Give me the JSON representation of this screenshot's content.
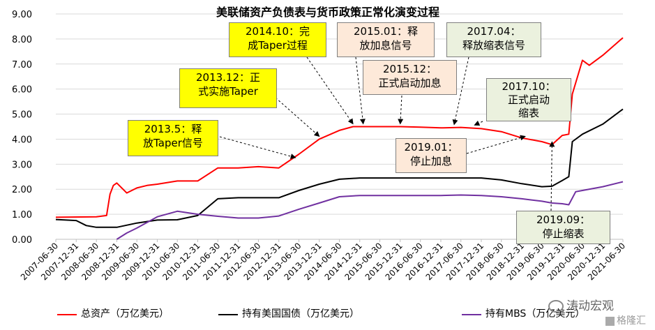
{
  "chart_data": {
    "type": "line",
    "title": "美联储资产负债表与货币政策正常化演变过程",
    "xlabel": "",
    "ylabel": "",
    "ylim": [
      0,
      9
    ],
    "yticks": [
      "0.00",
      "1.00",
      "2.00",
      "3.00",
      "4.00",
      "5.00",
      "6.00",
      "7.00",
      "8.00",
      "9.00"
    ],
    "xtick_labels": [
      "2007-06-30",
      "2007-12-31",
      "2008-06-30",
      "2008-12-31",
      "2009-06-30",
      "2009-12-31",
      "2010-06-30",
      "2010-12-31",
      "2011-06-30",
      "2011-12-31",
      "2012-06-30",
      "2012-12-31",
      "2013-06-30",
      "2013-12-31",
      "2014-06-30",
      "2014-12-31",
      "2015-06-30",
      "2015-12-31",
      "2016-06-30",
      "2016-12-31",
      "2017-06-30",
      "2017-12-31",
      "2018-06-30",
      "2018-12-31",
      "2019-06-30",
      "2019-12-31",
      "2020-06-30",
      "2020-12-31",
      "2021-06-30"
    ],
    "grid": true,
    "legend_position": "bottom",
    "series": [
      {
        "name": "总资产（万亿美元）",
        "color": "#ff0000",
        "points": [
          [
            "2007-06-30",
            0.88
          ],
          [
            "2008-06-30",
            0.9
          ],
          [
            "2008-09-30",
            0.95
          ],
          [
            "2008-10-31",
            1.8
          ],
          [
            "2008-11-30",
            2.15
          ],
          [
            "2008-12-31",
            2.25
          ],
          [
            "2009-03-31",
            1.85
          ],
          [
            "2009-06-30",
            2.05
          ],
          [
            "2009-09-30",
            2.15
          ],
          [
            "2009-12-31",
            2.2
          ],
          [
            "2010-06-30",
            2.33
          ],
          [
            "2010-12-31",
            2.33
          ],
          [
            "2011-06-30",
            2.85
          ],
          [
            "2011-12-31",
            2.85
          ],
          [
            "2012-06-30",
            2.9
          ],
          [
            "2012-12-31",
            2.85
          ],
          [
            "2013-06-30",
            3.4
          ],
          [
            "2013-12-31",
            4.0
          ],
          [
            "2014-06-30",
            4.35
          ],
          [
            "2014-10-31",
            4.5
          ],
          [
            "2014-12-31",
            4.5
          ],
          [
            "2015-06-30",
            4.5
          ],
          [
            "2015-12-31",
            4.5
          ],
          [
            "2016-06-30",
            4.48
          ],
          [
            "2016-12-31",
            4.45
          ],
          [
            "2017-06-30",
            4.47
          ],
          [
            "2017-12-31",
            4.42
          ],
          [
            "2018-06-30",
            4.3
          ],
          [
            "2018-12-31",
            4.05
          ],
          [
            "2019-06-30",
            3.9
          ],
          [
            "2019-09-30",
            3.78
          ],
          [
            "2019-12-31",
            4.15
          ],
          [
            "2020-02-28",
            4.2
          ],
          [
            "2020-03-31",
            5.8
          ],
          [
            "2020-06-30",
            7.15
          ],
          [
            "2020-08-31",
            6.95
          ],
          [
            "2020-12-31",
            7.35
          ],
          [
            "2021-06-30",
            8.05
          ]
        ]
      },
      {
        "name": "持有美国国债（万亿美元）",
        "color": "#000000",
        "points": [
          [
            "2007-06-30",
            0.79
          ],
          [
            "2007-12-31",
            0.75
          ],
          [
            "2008-03-31",
            0.55
          ],
          [
            "2008-06-30",
            0.48
          ],
          [
            "2008-12-31",
            0.48
          ],
          [
            "2009-06-30",
            0.65
          ],
          [
            "2009-12-31",
            0.77
          ],
          [
            "2010-06-30",
            0.78
          ],
          [
            "2010-12-31",
            0.95
          ],
          [
            "2011-06-30",
            1.62
          ],
          [
            "2011-12-31",
            1.66
          ],
          [
            "2012-06-30",
            1.66
          ],
          [
            "2012-12-31",
            1.66
          ],
          [
            "2013-06-30",
            1.95
          ],
          [
            "2013-12-31",
            2.2
          ],
          [
            "2014-06-30",
            2.4
          ],
          [
            "2014-12-31",
            2.45
          ],
          [
            "2015-06-30",
            2.45
          ],
          [
            "2015-12-31",
            2.45
          ],
          [
            "2016-06-30",
            2.45
          ],
          [
            "2016-12-31",
            2.45
          ],
          [
            "2017-06-30",
            2.45
          ],
          [
            "2017-12-31",
            2.45
          ],
          [
            "2018-06-30",
            2.37
          ],
          [
            "2018-12-31",
            2.22
          ],
          [
            "2019-06-30",
            2.1
          ],
          [
            "2019-09-30",
            2.12
          ],
          [
            "2019-12-31",
            2.35
          ],
          [
            "2020-02-28",
            2.5
          ],
          [
            "2020-03-31",
            3.9
          ],
          [
            "2020-06-30",
            4.2
          ],
          [
            "2020-12-31",
            4.6
          ],
          [
            "2021-06-30",
            5.2
          ]
        ]
      },
      {
        "name": "持有MBS（万亿美元）",
        "color": "#7030a0",
        "points": [
          [
            "2008-12-31",
            0.0
          ],
          [
            "2009-03-31",
            0.25
          ],
          [
            "2009-06-30",
            0.45
          ],
          [
            "2009-12-31",
            0.9
          ],
          [
            "2010-06-30",
            1.12
          ],
          [
            "2010-12-31",
            1.0
          ],
          [
            "2011-06-30",
            0.92
          ],
          [
            "2011-12-31",
            0.85
          ],
          [
            "2012-06-30",
            0.85
          ],
          [
            "2012-12-31",
            0.93
          ],
          [
            "2013-06-30",
            1.2
          ],
          [
            "2013-12-31",
            1.45
          ],
          [
            "2014-06-30",
            1.7
          ],
          [
            "2014-12-31",
            1.75
          ],
          [
            "2015-06-30",
            1.75
          ],
          [
            "2015-12-31",
            1.75
          ],
          [
            "2016-06-30",
            1.75
          ],
          [
            "2016-12-31",
            1.75
          ],
          [
            "2017-06-30",
            1.77
          ],
          [
            "2017-12-31",
            1.75
          ],
          [
            "2018-06-30",
            1.7
          ],
          [
            "2018-12-31",
            1.62
          ],
          [
            "2019-06-30",
            1.52
          ],
          [
            "2019-09-30",
            1.45
          ],
          [
            "2019-12-31",
            1.42
          ],
          [
            "2020-02-28",
            1.38
          ],
          [
            "2020-04-30",
            1.9
          ],
          [
            "2020-06-30",
            1.95
          ],
          [
            "2020-12-31",
            2.1
          ],
          [
            "2021-06-30",
            2.3
          ]
        ]
      }
    ],
    "annotations": [
      {
        "text": "2013.5：释放Taper信号",
        "target": [
          "2013-05-31",
          3.15
        ],
        "style": "yellow"
      },
      {
        "text": "2013.12：正式实施Taper",
        "target": [
          "2013-12-31",
          4.0
        ],
        "style": "yellow"
      },
      {
        "text": "2014.10：完成Taper过程",
        "target": [
          "2014-10-31",
          4.5
        ],
        "style": "yellow"
      },
      {
        "text": "2015.01：释放加息信号",
        "target": [
          "2015-01-31",
          4.5
        ],
        "style": "peach"
      },
      {
        "text": "2015.12：正式启动加息",
        "target": [
          "2015-12-31",
          4.5
        ],
        "style": "peach"
      },
      {
        "text": "2017.04：释放缩表信号",
        "target": [
          "2017-04-30",
          4.47
        ],
        "style": "green"
      },
      {
        "text": "2017.10：正式启动缩表",
        "target": [
          "2017-10-31",
          4.45
        ],
        "style": "green"
      },
      {
        "text": "2019.01：停止加息",
        "target": [
          "2019-01-31",
          4.0
        ],
        "style": "peach"
      },
      {
        "text": "2019.09：停止缩表",
        "target": [
          "2019-09-30",
          3.78
        ],
        "style": "green"
      }
    ]
  },
  "title": "美联储资产负债表与货币政策正常化演变过程",
  "ann": {
    "a1_l1": "2013.5：释",
    "a1_l2": "放Taper信号",
    "a2_l1": "2013.12：正",
    "a2_l2": "式实施Taper",
    "a3_l1": "2014.10：完",
    "a3_l2": "成Taper过程",
    "a4_l1": "2015.01：释",
    "a4_l2": "放加息信号",
    "a5_l1": "2015.12：",
    "a5_l2": "正式启动加息",
    "a6_l1": "2017.04：",
    "a6_l2": "释放缩表信号",
    "a7_l1": "2017.10：",
    "a7_l2": "正式启动",
    "a7_l3": "缩表",
    "a8_l1": "2019.01：",
    "a8_l2": "停止加息",
    "a9_l1": "2019.09：",
    "a9_l2": "停止缩表"
  },
  "legend": {
    "total": "总资产（万亿美元）",
    "treasury": "持有美国国债（万亿美元）",
    "mbs": "持有MBS（万亿美元）"
  },
  "watermark": {
    "brand": "涛动宏观",
    "site": "格隆汇"
  }
}
